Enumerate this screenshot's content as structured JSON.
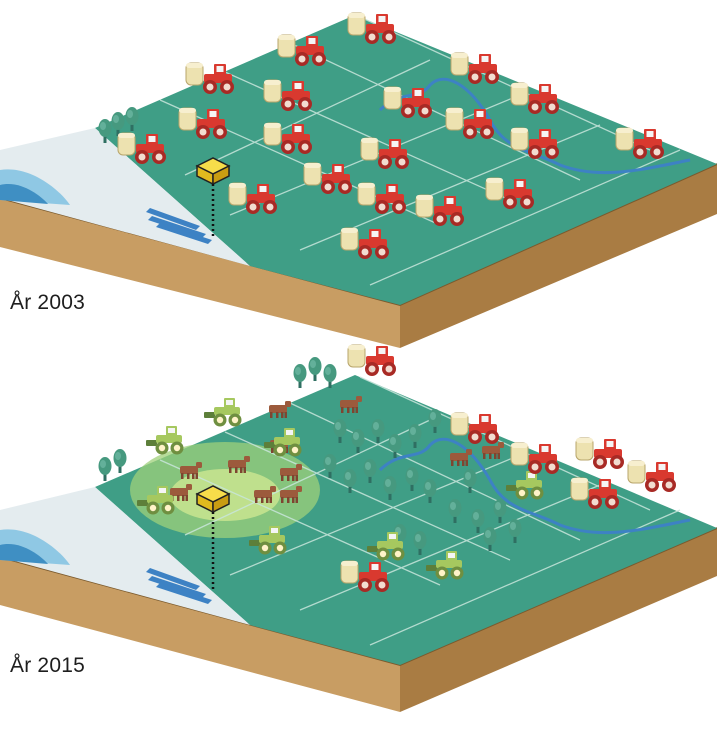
{
  "panels": [
    {
      "year_label": "År 2003"
    },
    {
      "year_label": "År 2015"
    }
  ],
  "colors": {
    "field": "#3f9e86",
    "field_light": "#6cb9a4",
    "grid_line": "#c9e6dc",
    "soil_front": "#c89d63",
    "soil_side": "#a97c43",
    "soil_top_edge": "#7b5a2d",
    "lake": "#8fc8e4",
    "lake_deep": "#3f8fc3",
    "shore": "#e4ecef",
    "river": "#3d82c4",
    "tractor_red": "#d9392f",
    "tractor_green": "#9cc25c",
    "tank": "#e9dca6",
    "cow": "#9c5a3c",
    "tree": "#3d8f7d",
    "village": "#f4d43b",
    "pasture": "#b7dc8c"
  },
  "icons": [
    "tractor-red-icon",
    "tractor-green-icon",
    "silo-icon",
    "cow-icon",
    "tree-icon",
    "house-icon",
    "well-pole-icon"
  ]
}
